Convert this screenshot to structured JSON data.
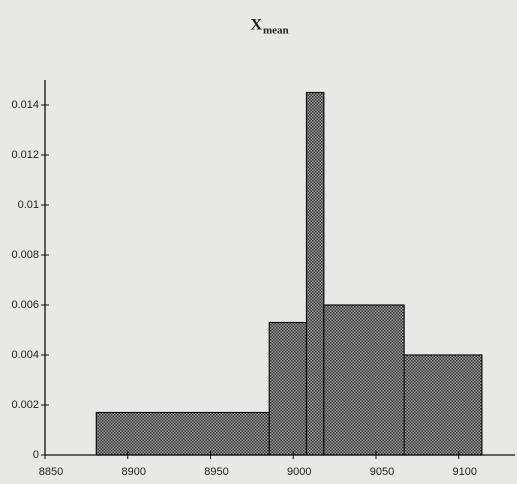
{
  "chart_data": {
    "type": "histogram",
    "title": "X",
    "title_subscript": "mean",
    "bins": [
      8881,
      8985.5,
      9008,
      9018.5,
      9067,
      9114
    ],
    "counts": [
      0.0017,
      0.0053,
      0.0145,
      0.006,
      0.004
    ],
    "color": "#555555",
    "xlim": [
      8850,
      9134
    ],
    "xticks": [
      8850,
      8900,
      8950,
      9000,
      9050,
      9100
    ],
    "ylim": [
      0,
      0.015
    ],
    "yticks": [
      0,
      0.002,
      0.004,
      0.006,
      0.008,
      0.01,
      0.012,
      0.014
    ]
  }
}
